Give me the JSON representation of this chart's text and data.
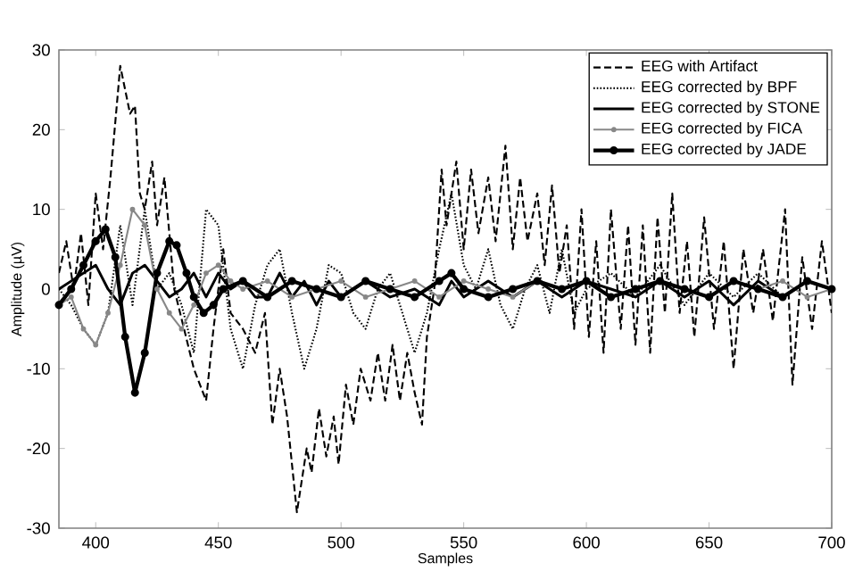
{
  "chart_data": {
    "type": "line",
    "xlabel": "Samples",
    "ylabel": "Amplitude (µV)",
    "xlim": [
      385,
      700
    ],
    "ylim": [
      -30,
      30
    ],
    "xticks": [
      400,
      450,
      500,
      550,
      600,
      650,
      700
    ],
    "yticks": [
      -30,
      -20,
      -10,
      0,
      10,
      20,
      30
    ],
    "legend": "top right",
    "grid": false,
    "series": [
      {
        "name": "EEG with Artifact",
        "color": "#000000",
        "line_style": "dashed",
        "marker": "none",
        "x": [
          385,
          388,
          391,
          394,
          397,
          400,
          403,
          406,
          410,
          414,
          416,
          418,
          420,
          423,
          425,
          428,
          432,
          436,
          440,
          445,
          448,
          452,
          455,
          460,
          465,
          469,
          472,
          475,
          478,
          482,
          486,
          488,
          491,
          494,
          497,
          499,
          502,
          505,
          508,
          512,
          515,
          518,
          521,
          524,
          527,
          530,
          533,
          535,
          538,
          541,
          543,
          547,
          550,
          553,
          556,
          560,
          563,
          567,
          570,
          573,
          576,
          580,
          583,
          586,
          589,
          592,
          595,
          598,
          601,
          604,
          607,
          610,
          614,
          617,
          620,
          623,
          626,
          629,
          632,
          635,
          638,
          641,
          644,
          648,
          652,
          656,
          660,
          664,
          668,
          672,
          676,
          681,
          684,
          688,
          692,
          696,
          700
        ],
        "values": [
          2,
          6,
          0,
          7,
          -2,
          12,
          5,
          14,
          28,
          22,
          23,
          12,
          10,
          16,
          8,
          14,
          0,
          -5,
          -10,
          -14,
          -5,
          5,
          -3,
          -5,
          -8,
          -3,
          -17,
          -10,
          -16,
          -28,
          -20,
          -23,
          -15,
          -21,
          -16,
          -22,
          -12,
          -17,
          -10,
          -14,
          -8,
          -14,
          -7,
          -14,
          -8,
          -13,
          -17,
          -6,
          0,
          15,
          8,
          16,
          5,
          15,
          7,
          14,
          6,
          18,
          5,
          14,
          6,
          12,
          3,
          13,
          2,
          8,
          -5,
          10,
          -6,
          6,
          -8,
          10,
          -5,
          8,
          -7,
          8,
          -8,
          9,
          -3,
          12,
          -3,
          6,
          -6,
          9,
          -5,
          6,
          -10,
          5,
          -3,
          5,
          -4,
          10,
          -12,
          4,
          -5,
          6,
          -3
        ]
      },
      {
        "name": "EEG corrected by BPF",
        "color": "#000000",
        "line_style": "dotted",
        "marker": "none",
        "x": [
          385,
          390,
          395,
          400,
          405,
          410,
          415,
          420,
          425,
          430,
          435,
          440,
          445,
          450,
          455,
          460,
          465,
          470,
          475,
          480,
          485,
          490,
          495,
          500,
          505,
          510,
          515,
          520,
          525,
          530,
          535,
          540,
          545,
          550,
          555,
          560,
          565,
          570,
          575,
          580,
          585,
          590,
          595,
          600,
          610,
          620,
          630,
          640,
          650,
          660,
          670,
          680,
          690,
          700
        ],
        "values": [
          0,
          -2,
          -5,
          -7,
          -3,
          8,
          -2,
          10,
          0,
          2,
          -2,
          -8,
          10,
          8,
          -5,
          -10,
          -2,
          3,
          5,
          -3,
          -10,
          -5,
          3,
          2,
          -3,
          -5,
          0,
          2,
          -3,
          -8,
          -3,
          5,
          12,
          3,
          0,
          5,
          -2,
          -5,
          0,
          3,
          -3,
          5,
          -3,
          0,
          2,
          -1,
          3,
          -2,
          2,
          -1,
          2,
          -1,
          1,
          0
        ]
      },
      {
        "name": "EEG corrected by STONE",
        "color": "#000000",
        "line_style": "solid",
        "marker": "none",
        "x": [
          385,
          390,
          395,
          400,
          405,
          410,
          415,
          420,
          425,
          430,
          435,
          440,
          445,
          450,
          455,
          460,
          465,
          470,
          475,
          480,
          485,
          490,
          495,
          500,
          510,
          520,
          530,
          540,
          545,
          550,
          560,
          570,
          580,
          590,
          600,
          610,
          620,
          630,
          640,
          650,
          660,
          670,
          680,
          690,
          700
        ],
        "values": [
          0,
          1,
          2,
          3,
          0,
          -2,
          2,
          3,
          1,
          -1,
          0,
          2,
          -1,
          2,
          0,
          1,
          -1,
          -1,
          2,
          -1,
          1,
          -2,
          1,
          -1,
          1,
          -1,
          0,
          -2,
          1,
          -1,
          1,
          -1,
          1,
          -1,
          1,
          0,
          -1,
          1,
          -1,
          1,
          -2,
          1,
          -1,
          1,
          0
        ]
      },
      {
        "name": "EEG corrected by FICA",
        "color": "#888888",
        "line_style": "solid",
        "marker": "circle",
        "x": [
          385,
          390,
          395,
          400,
          405,
          410,
          415,
          420,
          425,
          430,
          435,
          440,
          445,
          450,
          455,
          460,
          470,
          480,
          490,
          500,
          510,
          520,
          530,
          540,
          550,
          560,
          570,
          580,
          590,
          600,
          610,
          620,
          630,
          640,
          650,
          660,
          670,
          680,
          690,
          700
        ],
        "values": [
          -2,
          -1,
          -5,
          -7,
          -3,
          3,
          10,
          8,
          0,
          -3,
          -5,
          -2,
          2,
          3,
          1,
          0,
          1,
          -1,
          0,
          1,
          -1,
          0,
          1,
          -1,
          1,
          0,
          -1,
          1,
          0,
          1,
          -1,
          0,
          1,
          0,
          -1,
          1,
          0,
          1,
          -1,
          0
        ]
      },
      {
        "name": "EEG corrected by JADE",
        "color": "#000000",
        "line_style": "solid",
        "marker": "circle",
        "x": [
          385,
          390,
          395,
          400,
          404,
          408,
          412,
          416,
          420,
          425,
          430,
          433,
          437,
          440,
          444,
          448,
          452,
          460,
          470,
          480,
          490,
          500,
          510,
          520,
          530,
          540,
          545,
          550,
          560,
          570,
          580,
          590,
          600,
          610,
          620,
          630,
          640,
          650,
          660,
          670,
          680,
          690,
          700
        ],
        "values": [
          -2,
          0,
          3,
          6,
          7.5,
          4,
          -6,
          -13,
          -8,
          2,
          6,
          5.5,
          2,
          -1,
          -3,
          -2,
          0,
          1,
          -1,
          1,
          0,
          -1,
          1,
          0,
          -1,
          1,
          2,
          0,
          -1,
          0,
          1,
          0,
          1,
          -1,
          0,
          1,
          0,
          -1,
          1,
          0,
          -1,
          1,
          0
        ]
      }
    ]
  }
}
